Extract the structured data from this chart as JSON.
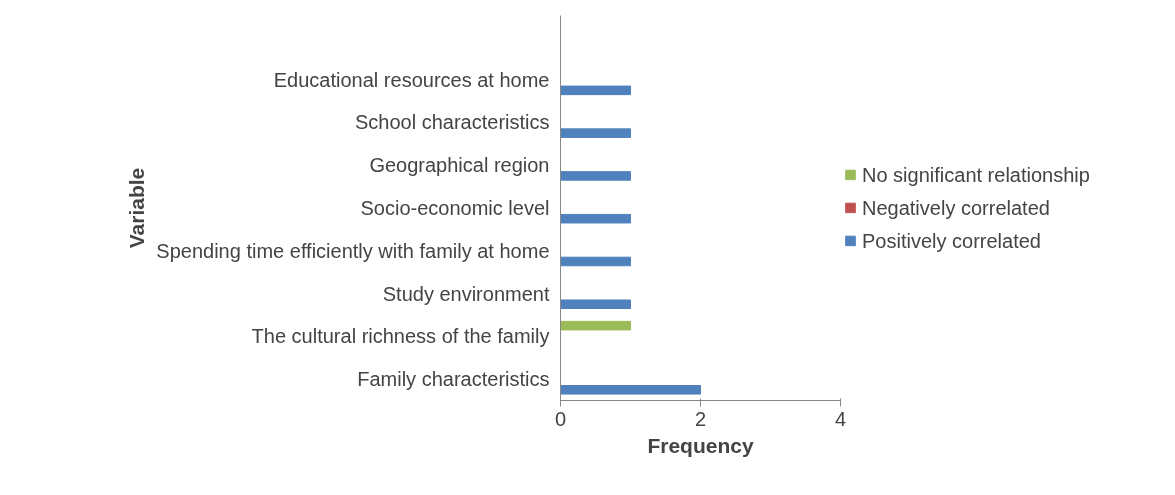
{
  "chart_data": {
    "type": "bar",
    "orientation": "horizontal",
    "xlabel": "Frequency",
    "ylabel": "Variable",
    "categories": [
      null,
      "Educational resources at home",
      "School characteristics",
      "Geographical region",
      "Socio-economic level",
      "Spending time efficiently with family at home",
      "Study environment",
      "The cultural richness of the family",
      "Family characteristics"
    ],
    "series": [
      {
        "name": "Positively correlated",
        "color": "#4f81bd",
        "values": [
          null,
          1,
          1,
          1,
          1,
          1,
          1,
          null,
          2
        ]
      },
      {
        "name": "Negatively correlated",
        "color": "#c0504d",
        "values": [
          null,
          null,
          null,
          null,
          null,
          null,
          null,
          null,
          null
        ]
      },
      {
        "name": "No significant relationship",
        "color": "#9bbb59",
        "values": [
          null,
          null,
          null,
          null,
          null,
          null,
          null,
          1,
          null
        ]
      }
    ],
    "xlim": [
      0,
      4
    ],
    "xticks": [
      0,
      2,
      4
    ],
    "grid": false,
    "legend": "right"
  }
}
